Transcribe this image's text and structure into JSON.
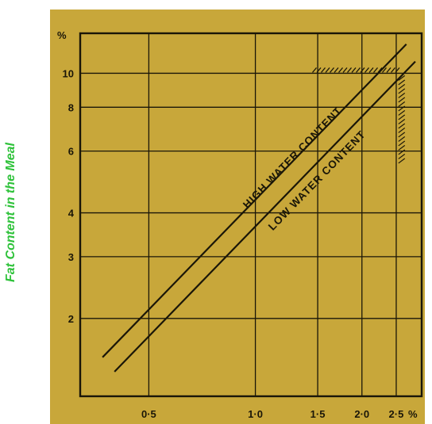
{
  "title": "Fat Content in the Meal",
  "colors": {
    "panel": "#c8a73a",
    "ink": "#1a1608",
    "title": "#2ec23a"
  },
  "chart_data": {
    "type": "line",
    "x_scale": "log",
    "y_scale": "log",
    "xlim": [
      0.32,
      2.95
    ],
    "ylim": [
      1.2,
      13.0
    ],
    "x_unit_label": "%",
    "y_unit_label": "%",
    "x_ticks": [
      {
        "value": 0.5,
        "label": "0·5"
      },
      {
        "value": 1.0,
        "label": "1·0"
      },
      {
        "value": 1.5,
        "label": "1·5"
      },
      {
        "value": 2.0,
        "label": "2·0"
      },
      {
        "value": 2.5,
        "label": "2·5"
      }
    ],
    "x_grid": [
      0.5,
      1.0,
      1.5,
      2.0,
      2.5
    ],
    "y_ticks": [
      {
        "value": 2,
        "label": "2"
      },
      {
        "value": 3,
        "label": "3"
      },
      {
        "value": 4,
        "label": "4"
      },
      {
        "value": 6,
        "label": "6"
      },
      {
        "value": 8,
        "label": "8"
      },
      {
        "value": 10,
        "label": "10"
      }
    ],
    "y_grid": [
      2,
      3,
      4,
      6,
      8,
      10
    ],
    "grid": true,
    "series": [
      {
        "name": "HIGH WATER CONTENT",
        "x": [
          0.37,
          2.67
        ],
        "y": [
          1.55,
          12.1
        ],
        "label_at": [
          0.95,
          4.1
        ]
      },
      {
        "name": "LOW WATER CONTENT",
        "x": [
          0.4,
          2.83
        ],
        "y": [
          1.41,
          10.8
        ],
        "label_at": [
          1.12,
          3.55
        ]
      }
    ],
    "hatched_region": {
      "x_from": 1.45,
      "x_to": 2.55,
      "y_from": 5.6,
      "y_to": 10.0
    }
  }
}
